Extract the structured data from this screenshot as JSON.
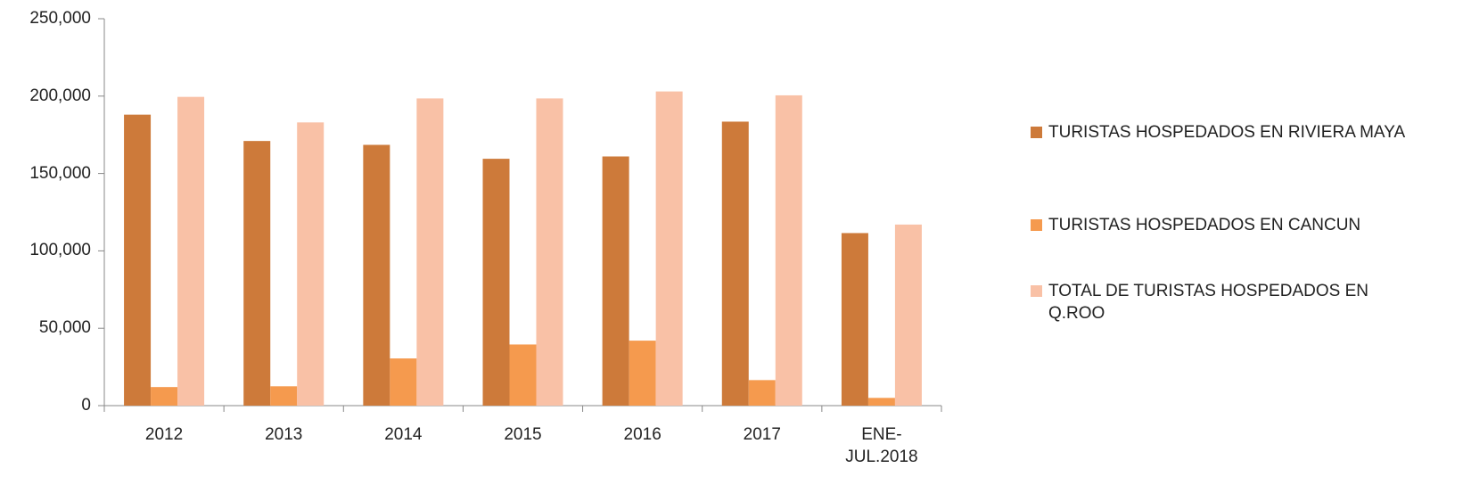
{
  "chart_data": {
    "type": "bar",
    "categories": [
      "2012",
      "2013",
      "2014",
      "2015",
      "2016",
      "2017",
      "ENE-JUL.2018"
    ],
    "series": [
      {
        "name": "TURISTAS HOSPEDADOS EN RIVIERA MAYA",
        "color": "#cd7a3a",
        "values": [
          188000,
          171000,
          168500,
          159500,
          161000,
          183500,
          111500
        ]
      },
      {
        "name": "TURISTAS HOSPEDADOS EN CANCUN",
        "color": "#f59a4e",
        "values": [
          12000,
          12500,
          30500,
          39500,
          42000,
          16500,
          5000
        ]
      },
      {
        "name": "TOTAL DE TURISTAS HOSPEDADOS EN Q.ROO",
        "color": "#f9c1a6",
        "values": [
          199500,
          183000,
          198500,
          198500,
          203000,
          200500,
          117000
        ]
      }
    ],
    "ylim": [
      0,
      250000
    ],
    "yticks": [
      0,
      {
        "value": 50000,
        "label": "50,000"
      },
      {
        "value": 100000,
        "label": "100,000"
      },
      {
        "value": 150000,
        "label": "150,000"
      },
      {
        "value": 200000,
        "label": "200,000"
      },
      {
        "value": 250000,
        "label": "250,000"
      }
    ],
    "legend": "right"
  }
}
